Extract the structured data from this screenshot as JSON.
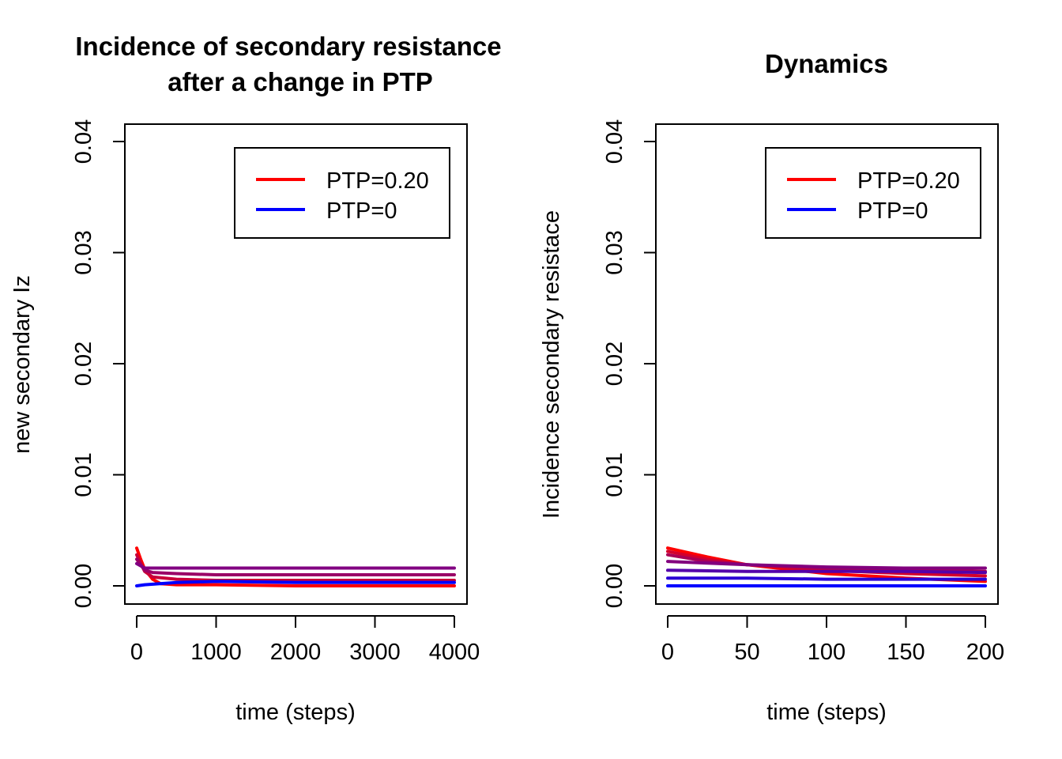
{
  "chart_data": [
    {
      "type": "line",
      "title_lines": [
        "Incidence of secondary resistance",
        "after a change in PTP"
      ],
      "xlabel": "time (steps)",
      "ylabel": "new secondary Iz",
      "xlim": [
        0,
        4000
      ],
      "ylim": [
        0,
        0.04
      ],
      "xticks": [
        "0",
        "1000",
        "2000",
        "3000",
        "4000"
      ],
      "yticks": [
        "0.00",
        "0.01",
        "0.02",
        "0.03",
        "0.04"
      ],
      "legend_position": "top-right",
      "legend": [
        {
          "label": "PTP=0.20",
          "color": "#ff0000"
        },
        {
          "label": "PTP=0",
          "color": "#0000ff"
        }
      ],
      "series_description": "family of curves with PTP from 0 to 0.20 colored blue-to-red",
      "series": [
        {
          "name": "PTP=0.20",
          "color": "#ff0000",
          "x": [
            0,
            50,
            100,
            200,
            300,
            500,
            1000,
            2000,
            3000,
            4000
          ],
          "values": [
            0.0034,
            0.0024,
            0.0015,
            0.0006,
            0.0002,
            0.0001,
            0.0001,
            0.0,
            0.0,
            0.0
          ]
        },
        {
          "name": "",
          "color": "#c8003a",
          "x": [
            0,
            100,
            200,
            500,
            1000,
            2000,
            4000
          ],
          "values": [
            0.0028,
            0.0013,
            0.0008,
            0.0006,
            0.0005,
            0.0005,
            0.0005
          ]
        },
        {
          "name": "",
          "color": "#9a0066",
          "x": [
            0,
            100,
            200,
            500,
            1000,
            2000,
            4000
          ],
          "values": [
            0.0024,
            0.0014,
            0.0012,
            0.0011,
            0.001,
            0.001,
            0.001
          ]
        },
        {
          "name": "",
          "color": "#820082",
          "x": [
            0,
            100,
            300,
            1000,
            2000,
            4000
          ],
          "values": [
            0.002,
            0.0016,
            0.0016,
            0.0016,
            0.0016,
            0.0016
          ]
        },
        {
          "name": "PTP=0",
          "color": "#0000ff",
          "x": [
            0,
            100,
            500,
            1000,
            2000,
            4000
          ],
          "values": [
            0.0,
            0.0001,
            0.0003,
            0.0004,
            0.0003,
            0.0003
          ]
        }
      ]
    },
    {
      "type": "line",
      "title_lines": [
        "Dynamics"
      ],
      "xlabel": "time (steps)",
      "ylabel": "Incidence secondary resistace",
      "xlim": [
        0,
        200
      ],
      "ylim": [
        0,
        0.04
      ],
      "xticks": [
        "0",
        "50",
        "100",
        "150",
        "200"
      ],
      "yticks": [
        "0.00",
        "0.01",
        "0.02",
        "0.03",
        "0.04"
      ],
      "legend_position": "top-right",
      "legend": [
        {
          "label": "PTP=0.20",
          "color": "#ff0000"
        },
        {
          "label": "PTP=0",
          "color": "#0000ff"
        }
      ],
      "series_description": "family of curves with PTP from 0 to 0.20 colored blue-to-red",
      "series": [
        {
          "name": "PTP=0.20",
          "color": "#ff0000",
          "x": [
            0,
            25,
            50,
            75,
            100,
            150,
            200
          ],
          "values": [
            0.0034,
            0.0026,
            0.0019,
            0.0015,
            0.0011,
            0.0007,
            0.0004
          ]
        },
        {
          "name": "",
          "color": "#d4002c",
          "x": [
            0,
            25,
            50,
            100,
            150,
            200
          ],
          "values": [
            0.0031,
            0.0024,
            0.0019,
            0.0014,
            0.0011,
            0.0009
          ]
        },
        {
          "name": "",
          "color": "#aa0055",
          "x": [
            0,
            25,
            50,
            100,
            150,
            200
          ],
          "values": [
            0.0028,
            0.0022,
            0.0019,
            0.0016,
            0.0014,
            0.0013
          ]
        },
        {
          "name": "",
          "color": "#82007e",
          "x": [
            0,
            50,
            100,
            150,
            200
          ],
          "values": [
            0.0022,
            0.0019,
            0.0017,
            0.0016,
            0.0016
          ]
        },
        {
          "name": "",
          "color": "#5400aa",
          "x": [
            0,
            50,
            100,
            150,
            200
          ],
          "values": [
            0.0014,
            0.0013,
            0.0013,
            0.0013,
            0.0012
          ]
        },
        {
          "name": "",
          "color": "#2a00d4",
          "x": [
            0,
            50,
            100,
            150,
            200
          ],
          "values": [
            0.0007,
            0.0007,
            0.0006,
            0.0006,
            0.0006
          ]
        },
        {
          "name": "PTP=0",
          "color": "#0000ff",
          "x": [
            0,
            50,
            100,
            150,
            200
          ],
          "values": [
            0.0,
            0.0,
            0.0,
            0.0,
            0.0
          ]
        }
      ]
    }
  ]
}
